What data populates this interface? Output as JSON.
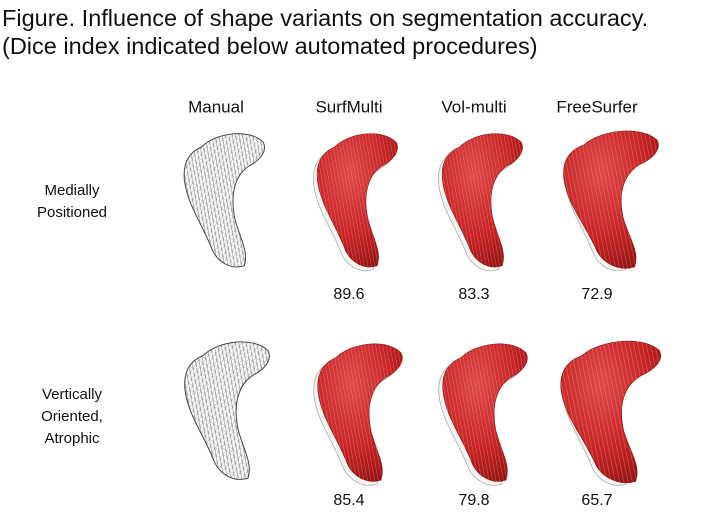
{
  "figure": {
    "title": [
      "Figure. Influence of shape variants on segmentation accuracy.",
      "(Dice index indicated below automated procedures)"
    ],
    "columns": [
      "Manual",
      "SurfMulti",
      "Vol-multi",
      "FreeSurfer"
    ],
    "rows": [
      {
        "label": [
          "Medially",
          "Positioned"
        ],
        "dice": [
          89.6,
          83.3,
          72.9
        ]
      },
      {
        "label": [
          "Vertically",
          "Oriented,",
          "Atrophic"
        ],
        "dice": [
          85.4,
          79.8,
          65.7
        ]
      }
    ]
  }
}
